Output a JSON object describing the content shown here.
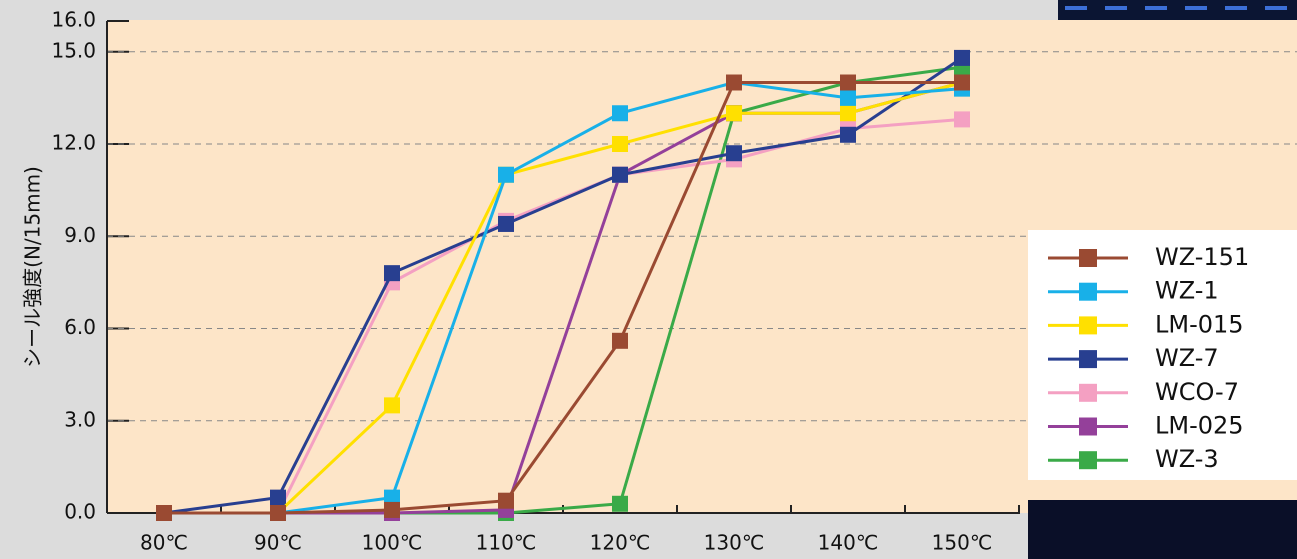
{
  "chart_data": {
    "type": "line",
    "y_label": "シール強度(N/15mm)",
    "categories": [
      "80℃",
      "90℃",
      "100℃",
      "110℃",
      "120℃",
      "130℃",
      "140℃",
      "150℃"
    ],
    "series": [
      {
        "name": "WZ-151",
        "color": "#9a4a32",
        "values": [
          0,
          0,
          0.1,
          0.4,
          5.6,
          14,
          14,
          14
        ]
      },
      {
        "name": "WZ-1",
        "color": "#18b0e8",
        "values": [
          0,
          0,
          0.5,
          11,
          13,
          14,
          13.5,
          13.8
        ]
      },
      {
        "name": "LM-015",
        "color": "#ffe000",
        "values": [
          0,
          0,
          3.5,
          11,
          12,
          13,
          13,
          14
        ]
      },
      {
        "name": "WZ-7",
        "color": "#283f90",
        "values": [
          0,
          0.5,
          7.8,
          9.4,
          11,
          11.7,
          12.3,
          14.8
        ]
      },
      {
        "name": "WCO-7",
        "color": "#f4a0c2",
        "values": [
          0,
          0,
          7.5,
          9.5,
          11,
          11.5,
          12.5,
          12.8
        ]
      },
      {
        "name": "LM-025",
        "color": "#94409a",
        "values": [
          0,
          0,
          0,
          0.1,
          11,
          13,
          13,
          14
        ]
      },
      {
        "name": "WZ-3",
        "color": "#3aaa48",
        "values": [
          0,
          0,
          0,
          0,
          0.3,
          13,
          14,
          14.5
        ]
      }
    ],
    "ylim": [
      0,
      16
    ],
    "yticks": [
      {
        "value": 0,
        "label": "0.0"
      },
      {
        "value": 3,
        "label": "3.0"
      },
      {
        "value": 6,
        "label": "6.0"
      },
      {
        "value": 9,
        "label": "9.0"
      },
      {
        "value": 12,
        "label": "12.0"
      },
      {
        "value": 15,
        "label": "15.0"
      },
      {
        "value": 16,
        "label": "16.0"
      }
    ],
    "grid": true
  }
}
